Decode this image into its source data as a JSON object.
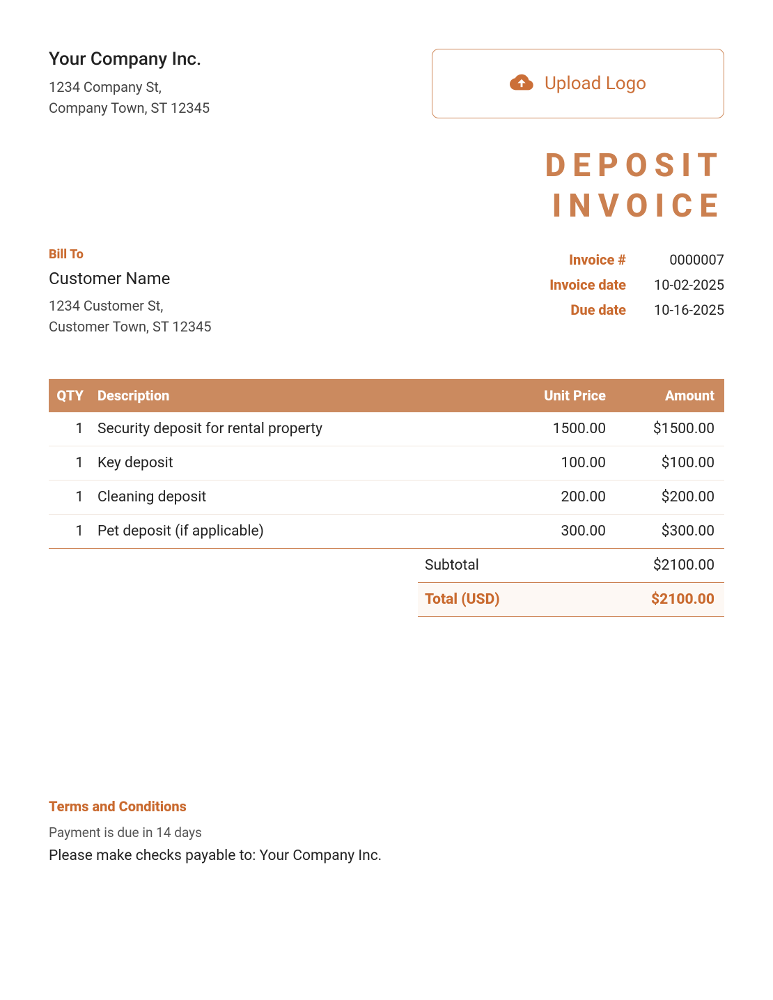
{
  "colors": {
    "accent": "#cb8050",
    "accent_text": "#c96a2f",
    "header_bg": "#cb8a5f",
    "header_fg": "#ffffff",
    "total_bg": "#fdf8f4",
    "body_text": "#222222",
    "muted_text": "#555555",
    "row_divider": "#f0e6de"
  },
  "company": {
    "name": "Your Company Inc.",
    "address_line1": "1234 Company St,",
    "address_line2": "Company Town, ST 12345"
  },
  "upload": {
    "label": "Upload Logo"
  },
  "document": {
    "title_line1": "DEPOSIT",
    "title_line2": "INVOICE"
  },
  "bill_to": {
    "heading": "Bill To",
    "customer_name": "Customer Name",
    "address_line1": "1234 Customer St,",
    "address_line2": "Customer Town, ST 12345"
  },
  "meta": {
    "invoice_number_label": "Invoice #",
    "invoice_number": "0000007",
    "invoice_date_label": "Invoice date",
    "invoice_date": "10-02-2025",
    "due_date_label": "Due date",
    "due_date": "10-16-2025"
  },
  "table": {
    "headers": {
      "qty": "QTY",
      "description": "Description",
      "unit_price": "Unit Price",
      "amount": "Amount"
    },
    "rows": [
      {
        "qty": "1",
        "description": "Security deposit for rental property",
        "unit_price": "1500.00",
        "amount": "$1500.00"
      },
      {
        "qty": "1",
        "description": "Key deposit",
        "unit_price": "100.00",
        "amount": "$100.00"
      },
      {
        "qty": "1",
        "description": "Cleaning deposit",
        "unit_price": "200.00",
        "amount": "$200.00"
      },
      {
        "qty": "1",
        "description": "Pet deposit (if applicable)",
        "unit_price": "300.00",
        "amount": "$300.00"
      }
    ]
  },
  "totals": {
    "subtotal_label": "Subtotal",
    "subtotal": "$2100.00",
    "total_label": "Total (USD)",
    "total": "$2100.00"
  },
  "terms": {
    "heading": "Terms and Conditions",
    "line1": "Payment is due in 14 days",
    "line2": "Please make checks payable to: Your Company Inc."
  }
}
